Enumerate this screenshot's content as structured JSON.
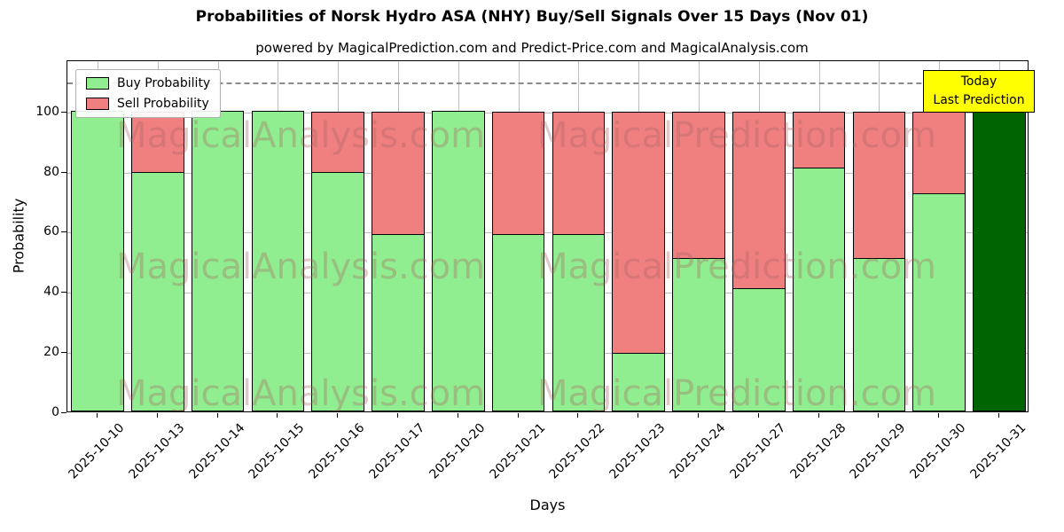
{
  "title": "Probabilities of Norsk Hydro ASA (NHY) Buy/Sell Signals Over 15 Days (Nov 01)",
  "subtitle": "powered by MagicalPrediction.com and Predict-Price.com and MagicalAnalysis.com",
  "legend": {
    "buy": "Buy Probability",
    "sell": "Sell Probability"
  },
  "annotation": {
    "line1": "Today",
    "line2": "Last Prediction"
  },
  "watermarks": [
    "MagicalAnalysis.com",
    "MagicalPrediction.com"
  ],
  "colors": {
    "buy": "#90ee90",
    "sell": "#f08080",
    "today": "#006400",
    "annotation_bg": "#ffff00",
    "grid": "#bdbdbd",
    "dashed": "#8a8a8a",
    "bar_edge": "#000000"
  },
  "chart_data": {
    "type": "bar",
    "stacked": true,
    "title": "Probabilities of Norsk Hydro ASA (NHY) Buy/Sell Signals Over 15 Days (Nov 01)",
    "xlabel": "Days",
    "ylabel": "Probability",
    "ylim": [
      0,
      117
    ],
    "yticks": [
      0,
      20,
      40,
      60,
      80,
      100
    ],
    "grid": true,
    "legend_position": "upper left",
    "dashed_line_y": 110,
    "categories": [
      "2025-10-10",
      "2025-10-13",
      "2025-10-14",
      "2025-10-15",
      "2025-10-16",
      "2025-10-17",
      "2025-10-20",
      "2025-10-21",
      "2025-10-22",
      "2025-10-23",
      "2025-10-24",
      "2025-10-27",
      "2025-10-28",
      "2025-10-29",
      "2025-10-30",
      "2025-10-31"
    ],
    "series": [
      {
        "name": "Buy Probability",
        "values": [
          100,
          79.5,
          100,
          100,
          79.5,
          59,
          100,
          59,
          59,
          19.5,
          51,
          41,
          81,
          51,
          72.5,
          100
        ]
      },
      {
        "name": "Sell Probability",
        "values": [
          0,
          20.5,
          0,
          0,
          20.5,
          41,
          0,
          41,
          41,
          80.5,
          49,
          59,
          19,
          49,
          27.5,
          0
        ]
      }
    ],
    "today_index": 15
  }
}
